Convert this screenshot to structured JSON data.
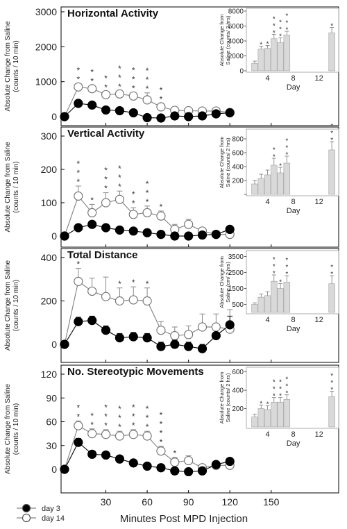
{
  "x_label": "Minutes Post MPD Injection",
  "x_ticks": [
    30,
    60,
    90,
    120,
    150
  ],
  "legend": [
    {
      "label": "day 3",
      "marker": "filled"
    },
    {
      "label": "day 14",
      "marker": "open"
    }
  ],
  "colors": {
    "day3": "#000000",
    "day14": "#ffffff",
    "bars": "#d9d9d9",
    "axis": "#000000"
  },
  "chart_data": [
    {
      "type": "line",
      "title": "Horizontal Activity",
      "ylabel": "Absolute Change from Saline (counts / 10 min)",
      "xlabel": "Minutes Post MPD Injection",
      "xlim": [
        0,
        180
      ],
      "ylim": [
        0,
        3000
      ],
      "yticks": [
        0,
        1000,
        2000,
        3000
      ],
      "series": [
        {
          "name": "day 3",
          "x": [
            0,
            10,
            20,
            30,
            40,
            50,
            60,
            70,
            80,
            90,
            100,
            110,
            120
          ],
          "values": [
            0,
            380,
            330,
            190,
            170,
            110,
            -30,
            -40,
            20,
            0,
            20,
            80,
            110
          ],
          "errors": [
            0,
            60,
            60,
            50,
            50,
            60,
            60,
            60,
            40,
            40,
            40,
            40,
            30
          ]
        },
        {
          "name": "day 14",
          "x": [
            0,
            10,
            20,
            30,
            40,
            50,
            60,
            70,
            80,
            90,
            100,
            110,
            120
          ],
          "values": [
            0,
            850,
            800,
            630,
            650,
            590,
            480,
            280,
            180,
            170,
            160,
            160,
            120
          ],
          "errors": [
            0,
            90,
            90,
            90,
            90,
            100,
            200,
            100,
            60,
            60,
            60,
            60,
            30
          ]
        }
      ],
      "stars": [
        {
          "x": 10,
          "n": 2
        },
        {
          "x": 20,
          "n": 2
        },
        {
          "x": 30,
          "n": 2
        },
        {
          "x": 40,
          "n": 3
        },
        {
          "x": 50,
          "n": 3
        },
        {
          "x": 60,
          "n": 3
        },
        {
          "x": 70,
          "n": 2
        }
      ],
      "inset": {
        "type": "bar",
        "ylabel": "Absolute Change from Saline (counts/ 2 hrs)",
        "xlabel": "Day",
        "ylim": [
          0,
          8000
        ],
        "yticks": [
          0,
          2000,
          4000,
          6000,
          8000
        ],
        "xticks": [
          4,
          8,
          12
        ],
        "days": [
          2,
          3,
          4,
          5,
          6,
          7,
          8,
          14
        ],
        "values": [
          1000,
          2900,
          3000,
          4300,
          3800,
          4800,
          0,
          5100
        ],
        "errors": [
          300,
          400,
          400,
          600,
          600,
          500,
          0,
          700
        ],
        "stars": [
          0,
          1,
          1,
          3,
          3,
          3,
          0,
          1
        ]
      }
    },
    {
      "type": "line",
      "title": "Vertical Activity",
      "ylabel": "Absolute Change from Saline (counts / 10 min)",
      "xlabel": "Minutes Post MPD Injection",
      "xlim": [
        0,
        180
      ],
      "ylim": [
        0,
        300
      ],
      "yticks": [
        0,
        100,
        200,
        300
      ],
      "series": [
        {
          "name": "day 3",
          "x": [
            0,
            10,
            20,
            30,
            40,
            50,
            60,
            70,
            80,
            90,
            100,
            110,
            120
          ],
          "values": [
            0,
            25,
            35,
            25,
            18,
            15,
            10,
            5,
            0,
            0,
            3,
            5,
            20
          ],
          "errors": [
            0,
            10,
            10,
            8,
            8,
            8,
            8,
            8,
            6,
            6,
            6,
            6,
            10
          ]
        },
        {
          "name": "day 14",
          "x": [
            0,
            10,
            20,
            30,
            40,
            50,
            60,
            70,
            80,
            90,
            100,
            110,
            120
          ],
          "values": [
            0,
            120,
            70,
            100,
            110,
            65,
            70,
            60,
            20,
            35,
            15,
            5,
            5
          ],
          "errors": [
            0,
            30,
            25,
            30,
            25,
            20,
            20,
            15,
            15,
            15,
            10,
            10,
            10
          ]
        }
      ],
      "stars": [
        {
          "x": 10,
          "n": 3
        },
        {
          "x": 20,
          "n": 1
        },
        {
          "x": 30,
          "n": 3
        },
        {
          "x": 40,
          "n": 3
        },
        {
          "x": 50,
          "n": 2
        },
        {
          "x": 60,
          "n": 3
        },
        {
          "x": 70,
          "n": 1
        }
      ],
      "inset": {
        "type": "bar",
        "ylabel": "Absolute Change from Saline (counts/ 2 hrs)",
        "xlabel": "Day",
        "ylim": [
          0,
          900
        ],
        "yticks": [
          0,
          200,
          400,
          600,
          800
        ],
        "ytick_labels": [
          "",
          "200",
          "400",
          "600",
          "800"
        ],
        "xticks": [
          4,
          8,
          12
        ],
        "days": [
          2,
          3,
          4,
          5,
          6,
          7,
          8,
          14
        ],
        "values": [
          150,
          230,
          280,
          420,
          310,
          450,
          0,
          640
        ],
        "errors": [
          50,
          60,
          70,
          100,
          80,
          100,
          0,
          120
        ],
        "stars": [
          0,
          0,
          0,
          2,
          1,
          3,
          0,
          3
        ]
      }
    },
    {
      "type": "line",
      "title": "Total Distance",
      "ylabel": "Absolute Change from Saline (counts / 10 min)",
      "xlabel": "Minutes Post MPD Injection",
      "xlim": [
        0,
        180
      ],
      "ylim": [
        -30,
        430
      ],
      "yticks": [
        0,
        200,
        400
      ],
      "series": [
        {
          "name": "day 3",
          "x": [
            0,
            10,
            20,
            30,
            40,
            50,
            60,
            70,
            80,
            90,
            100,
            110,
            120
          ],
          "values": [
            0,
            105,
            110,
            65,
            30,
            35,
            30,
            -10,
            0,
            -10,
            -20,
            40,
            90
          ],
          "errors": [
            0,
            20,
            20,
            20,
            20,
            20,
            20,
            20,
            20,
            20,
            20,
            30,
            40
          ]
        },
        {
          "name": "day 14",
          "x": [
            0,
            10,
            20,
            30,
            40,
            50,
            60,
            70,
            80,
            90,
            100,
            110,
            120
          ],
          "values": [
            0,
            290,
            245,
            220,
            200,
            205,
            200,
            65,
            40,
            45,
            80,
            80,
            70
          ],
          "errors": [
            0,
            60,
            60,
            90,
            60,
            60,
            60,
            40,
            40,
            40,
            60,
            60,
            90
          ]
        }
      ],
      "stars": [
        {
          "x": 10,
          "n": 2
        },
        {
          "x": 40,
          "n": 1
        },
        {
          "x": 50,
          "n": 1
        },
        {
          "x": 60,
          "n": 1
        }
      ],
      "inset": {
        "type": "bar",
        "ylabel": "Absolute Change from Saline (cm/ 2 hrs)",
        "xlabel": "Day",
        "ylim": [
          0,
          3700
        ],
        "yticks": [
          500,
          1500,
          2500,
          3500
        ],
        "xticks": [
          4,
          8,
          12
        ],
        "days": [
          2,
          3,
          4,
          5,
          6,
          7,
          8,
          14
        ],
        "values": [
          500,
          950,
          1050,
          1950,
          1500,
          1900,
          0,
          1800
        ],
        "errors": [
          100,
          200,
          250,
          400,
          300,
          400,
          0,
          500
        ],
        "stars": [
          0,
          0,
          0,
          3,
          1,
          3,
          0,
          2
        ]
      }
    },
    {
      "type": "line",
      "title": "No. Stereotypic Movements",
      "ylabel": "Absolute Change from Saline (counts / 10 min)",
      "xlabel": "Minutes Post MPD Injection",
      "xlim": [
        0,
        180
      ],
      "ylim": [
        -8,
        128
      ],
      "yticks": [
        0,
        30,
        60,
        90,
        120
      ],
      "series": [
        {
          "name": "day 3",
          "x": [
            0,
            10,
            20,
            30,
            40,
            50,
            60,
            70,
            80,
            90,
            100,
            110,
            120
          ],
          "values": [
            0,
            34,
            19,
            18,
            13,
            8,
            4,
            2,
            -2,
            -3,
            -2,
            6,
            10
          ],
          "errors": [
            0,
            5,
            4,
            4,
            4,
            4,
            4,
            4,
            4,
            3,
            3,
            3,
            3
          ]
        },
        {
          "name": "day 14",
          "x": [
            0,
            10,
            20,
            30,
            40,
            50,
            60,
            70,
            80,
            90,
            100,
            110,
            120
          ],
          "values": [
            0,
            55,
            45,
            44,
            42,
            44,
            42,
            23,
            9,
            11,
            2,
            5,
            5
          ],
          "errors": [
            0,
            6,
            6,
            6,
            6,
            6,
            6,
            6,
            6,
            6,
            4,
            4,
            4
          ]
        }
      ],
      "stars": [
        {
          "x": 10,
          "n": 2
        },
        {
          "x": 20,
          "n": 2
        },
        {
          "x": 30,
          "n": 3
        },
        {
          "x": 40,
          "n": 3
        },
        {
          "x": 50,
          "n": 3
        },
        {
          "x": 60,
          "n": 3
        },
        {
          "x": 70,
          "n": 4
        },
        {
          "x": 80,
          "n": 1
        }
      ],
      "inset": {
        "type": "bar",
        "ylabel": "Absolute Change from Saline (counts/ 2 hrs)",
        "xlabel": "Day",
        "ylim": [
          0,
          620
        ],
        "yticks": [
          200,
          400,
          600
        ],
        "xticks": [
          4,
          8,
          12
        ],
        "days": [
          2,
          3,
          4,
          5,
          6,
          7,
          8,
          14
        ],
        "values": [
          110,
          200,
          190,
          270,
          270,
          300,
          0,
          330
        ],
        "errors": [
          30,
          40,
          40,
          50,
          50,
          50,
          0,
          60
        ],
        "stars": [
          0,
          1,
          1,
          3,
          3,
          3,
          0,
          3
        ]
      }
    }
  ]
}
